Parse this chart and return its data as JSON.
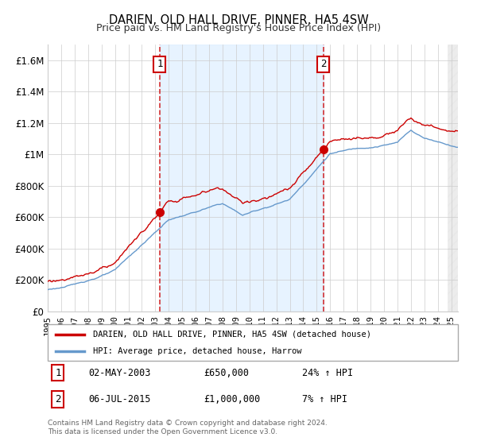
{
  "title": "DARIEN, OLD HALL DRIVE, PINNER, HA5 4SW",
  "subtitle": "Price paid vs. HM Land Registry's House Price Index (HPI)",
  "ylim": [
    0,
    1700000
  ],
  "xlim_start": 1995.0,
  "xlim_end": 2025.5,
  "sale1_date": 2003.33,
  "sale1_price": 650000,
  "sale2_date": 2015.5,
  "sale2_price": 1000000,
  "line_color_red": "#cc0000",
  "line_color_blue": "#6699cc",
  "bg_shaded": "#ddeeff",
  "grid_color": "#cccccc",
  "marker_color": "#cc0000",
  "dashed_line_color": "#cc0000",
  "legend_line1": "DARIEN, OLD HALL DRIVE, PINNER, HA5 4SW (detached house)",
  "legend_line2": "HPI: Average price, detached house, Harrow",
  "footer1": "Contains HM Land Registry data © Crown copyright and database right 2024.",
  "footer2": "This data is licensed under the Open Government Licence v3.0.",
  "note1_num": "1",
  "note1_date": "02-MAY-2003",
  "note1_price": "£650,000",
  "note1_hpi": "24% ↑ HPI",
  "note2_num": "2",
  "note2_date": "06-JUL-2015",
  "note2_price": "£1,000,000",
  "note2_hpi": "7% ↑ HPI"
}
